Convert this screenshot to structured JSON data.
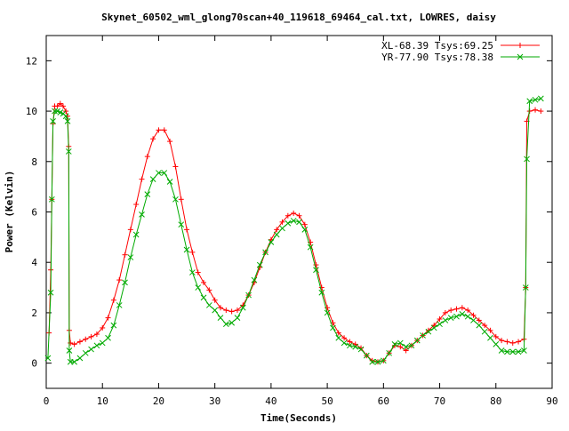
{
  "chart_data": {
    "type": "line",
    "title": "Skynet_60502_wml_glong70scan+40_119618_69464_cal.txt, LOWRES, daisy",
    "xlabel": "Time(Seconds)",
    "ylabel": "Power (Kelvin)",
    "xlim": [
      0,
      90
    ],
    "ylim": [
      -1,
      13
    ],
    "x_ticks": [
      "0",
      "10",
      "20",
      "30",
      "40",
      "50",
      "60",
      "70",
      "80",
      "90"
    ],
    "y_ticks": [
      "0",
      "2",
      "4",
      "6",
      "8",
      "10",
      "12"
    ],
    "x_tick_values": [
      0,
      10,
      20,
      30,
      40,
      50,
      60,
      70,
      80,
      90
    ],
    "y_tick_values": [
      0,
      2,
      4,
      6,
      8,
      10,
      12
    ],
    "grid": false,
    "legend_position": "top-right",
    "series": [
      {
        "name": "XL-68.39 Tsys:69.25",
        "color": "#ff0000",
        "marker": "plus",
        "points": [
          [
            0.5,
            1.2
          ],
          [
            0.8,
            3.7
          ],
          [
            1.0,
            6.5
          ],
          [
            1.2,
            9.5
          ],
          [
            1.5,
            10.2
          ],
          [
            2.0,
            10.2
          ],
          [
            2.5,
            10.3
          ],
          [
            3.0,
            10.2
          ],
          [
            3.5,
            10.0
          ],
          [
            3.8,
            9.8
          ],
          [
            4.0,
            8.6
          ],
          [
            4.1,
            1.3
          ],
          [
            4.3,
            0.8
          ],
          [
            5.0,
            0.75
          ],
          [
            6.0,
            0.85
          ],
          [
            7.0,
            0.95
          ],
          [
            8.0,
            1.05
          ],
          [
            9.0,
            1.15
          ],
          [
            10.0,
            1.4
          ],
          [
            11.0,
            1.8
          ],
          [
            12.0,
            2.5
          ],
          [
            13.0,
            3.3
          ],
          [
            14.0,
            4.3
          ],
          [
            15.0,
            5.3
          ],
          [
            16.0,
            6.3
          ],
          [
            17.0,
            7.3
          ],
          [
            18.0,
            8.2
          ],
          [
            19.0,
            8.9
          ],
          [
            20.0,
            9.25
          ],
          [
            21.0,
            9.25
          ],
          [
            22.0,
            8.8
          ],
          [
            23.0,
            7.8
          ],
          [
            24.0,
            6.5
          ],
          [
            25.0,
            5.3
          ],
          [
            26.0,
            4.4
          ],
          [
            27.0,
            3.6
          ],
          [
            28.0,
            3.2
          ],
          [
            29.0,
            2.9
          ],
          [
            30.0,
            2.5
          ],
          [
            31.0,
            2.2
          ],
          [
            32.0,
            2.1
          ],
          [
            33.0,
            2.05
          ],
          [
            34.0,
            2.1
          ],
          [
            35.0,
            2.3
          ],
          [
            36.0,
            2.7
          ],
          [
            37.0,
            3.2
          ],
          [
            38.0,
            3.8
          ],
          [
            39.0,
            4.4
          ],
          [
            40.0,
            4.9
          ],
          [
            41.0,
            5.3
          ],
          [
            42.0,
            5.6
          ],
          [
            43.0,
            5.85
          ],
          [
            44.0,
            5.95
          ],
          [
            45.0,
            5.85
          ],
          [
            46.0,
            5.5
          ],
          [
            47.0,
            4.8
          ],
          [
            48.0,
            3.9
          ],
          [
            49.0,
            3.0
          ],
          [
            50.0,
            2.2
          ],
          [
            51.0,
            1.6
          ],
          [
            52.0,
            1.2
          ],
          [
            53.0,
            1.0
          ],
          [
            54.0,
            0.85
          ],
          [
            55.0,
            0.75
          ],
          [
            56.0,
            0.6
          ],
          [
            57.0,
            0.3
          ],
          [
            58.0,
            0.1
          ],
          [
            59.0,
            0.05
          ],
          [
            60.0,
            0.1
          ],
          [
            61.0,
            0.4
          ],
          [
            62.0,
            0.7
          ],
          [
            63.0,
            0.65
          ],
          [
            64.0,
            0.5
          ],
          [
            65.0,
            0.7
          ],
          [
            66.0,
            0.9
          ],
          [
            67.0,
            1.1
          ],
          [
            68.0,
            1.3
          ],
          [
            69.0,
            1.5
          ],
          [
            70.0,
            1.75
          ],
          [
            71.0,
            2.0
          ],
          [
            72.0,
            2.1
          ],
          [
            73.0,
            2.15
          ],
          [
            74.0,
            2.2
          ],
          [
            75.0,
            2.1
          ],
          [
            76.0,
            1.9
          ],
          [
            77.0,
            1.7
          ],
          [
            78.0,
            1.5
          ],
          [
            79.0,
            1.3
          ],
          [
            80.0,
            1.05
          ],
          [
            81.0,
            0.9
          ],
          [
            82.0,
            0.85
          ],
          [
            83.0,
            0.8
          ],
          [
            84.0,
            0.85
          ],
          [
            85.0,
            0.95
          ],
          [
            85.3,
            3.0
          ],
          [
            85.5,
            9.6
          ],
          [
            86.0,
            10.0
          ],
          [
            87.0,
            10.05
          ],
          [
            88.0,
            10.0
          ]
        ]
      },
      {
        "name": "YR-77.90 Tsys:78.38",
        "color": "#00aa00",
        "marker": "x",
        "points": [
          [
            0.3,
            0.2
          ],
          [
            0.8,
            2.8
          ],
          [
            1.0,
            6.5
          ],
          [
            1.2,
            9.6
          ],
          [
            1.5,
            10.0
          ],
          [
            2.0,
            10.0
          ],
          [
            2.5,
            9.95
          ],
          [
            3.0,
            9.9
          ],
          [
            3.5,
            9.8
          ],
          [
            3.8,
            9.6
          ],
          [
            4.0,
            8.4
          ],
          [
            4.1,
            0.5
          ],
          [
            4.3,
            0.05
          ],
          [
            5.0,
            0.05
          ],
          [
            6.0,
            0.2
          ],
          [
            7.0,
            0.4
          ],
          [
            8.0,
            0.55
          ],
          [
            9.0,
            0.7
          ],
          [
            10.0,
            0.8
          ],
          [
            11.0,
            1.0
          ],
          [
            12.0,
            1.5
          ],
          [
            13.0,
            2.3
          ],
          [
            14.0,
            3.2
          ],
          [
            15.0,
            4.2
          ],
          [
            16.0,
            5.1
          ],
          [
            17.0,
            5.9
          ],
          [
            18.0,
            6.7
          ],
          [
            19.0,
            7.3
          ],
          [
            20.0,
            7.55
          ],
          [
            21.0,
            7.55
          ],
          [
            22.0,
            7.2
          ],
          [
            23.0,
            6.5
          ],
          [
            24.0,
            5.5
          ],
          [
            25.0,
            4.5
          ],
          [
            26.0,
            3.6
          ],
          [
            27.0,
            3.0
          ],
          [
            28.0,
            2.6
          ],
          [
            29.0,
            2.3
          ],
          [
            30.0,
            2.1
          ],
          [
            31.0,
            1.8
          ],
          [
            32.0,
            1.55
          ],
          [
            33.0,
            1.6
          ],
          [
            34.0,
            1.8
          ],
          [
            35.0,
            2.2
          ],
          [
            36.0,
            2.7
          ],
          [
            37.0,
            3.3
          ],
          [
            38.0,
            3.9
          ],
          [
            39.0,
            4.4
          ],
          [
            40.0,
            4.8
          ],
          [
            41.0,
            5.1
          ],
          [
            42.0,
            5.35
          ],
          [
            43.0,
            5.55
          ],
          [
            44.0,
            5.65
          ],
          [
            45.0,
            5.6
          ],
          [
            46.0,
            5.3
          ],
          [
            47.0,
            4.6
          ],
          [
            48.0,
            3.7
          ],
          [
            49.0,
            2.8
          ],
          [
            50.0,
            2.0
          ],
          [
            51.0,
            1.4
          ],
          [
            52.0,
            1.0
          ],
          [
            53.0,
            0.8
          ],
          [
            54.0,
            0.7
          ],
          [
            55.0,
            0.65
          ],
          [
            56.0,
            0.55
          ],
          [
            57.0,
            0.3
          ],
          [
            58.0,
            0.05
          ],
          [
            59.0,
            0.05
          ],
          [
            60.0,
            0.1
          ],
          [
            61.0,
            0.4
          ],
          [
            62.0,
            0.75
          ],
          [
            63.0,
            0.8
          ],
          [
            64.0,
            0.65
          ],
          [
            65.0,
            0.7
          ],
          [
            66.0,
            0.9
          ],
          [
            67.0,
            1.1
          ],
          [
            68.0,
            1.25
          ],
          [
            69.0,
            1.4
          ],
          [
            70.0,
            1.55
          ],
          [
            71.0,
            1.7
          ],
          [
            72.0,
            1.8
          ],
          [
            73.0,
            1.85
          ],
          [
            74.0,
            1.95
          ],
          [
            75.0,
            1.85
          ],
          [
            76.0,
            1.7
          ],
          [
            77.0,
            1.5
          ],
          [
            78.0,
            1.25
          ],
          [
            79.0,
            1.0
          ],
          [
            80.0,
            0.75
          ],
          [
            81.0,
            0.5
          ],
          [
            82.0,
            0.45
          ],
          [
            83.0,
            0.45
          ],
          [
            84.0,
            0.45
          ],
          [
            85.0,
            0.5
          ],
          [
            85.3,
            3.0
          ],
          [
            85.5,
            8.1
          ],
          [
            86.0,
            10.4
          ],
          [
            87.0,
            10.45
          ],
          [
            88.0,
            10.5
          ]
        ]
      }
    ]
  }
}
